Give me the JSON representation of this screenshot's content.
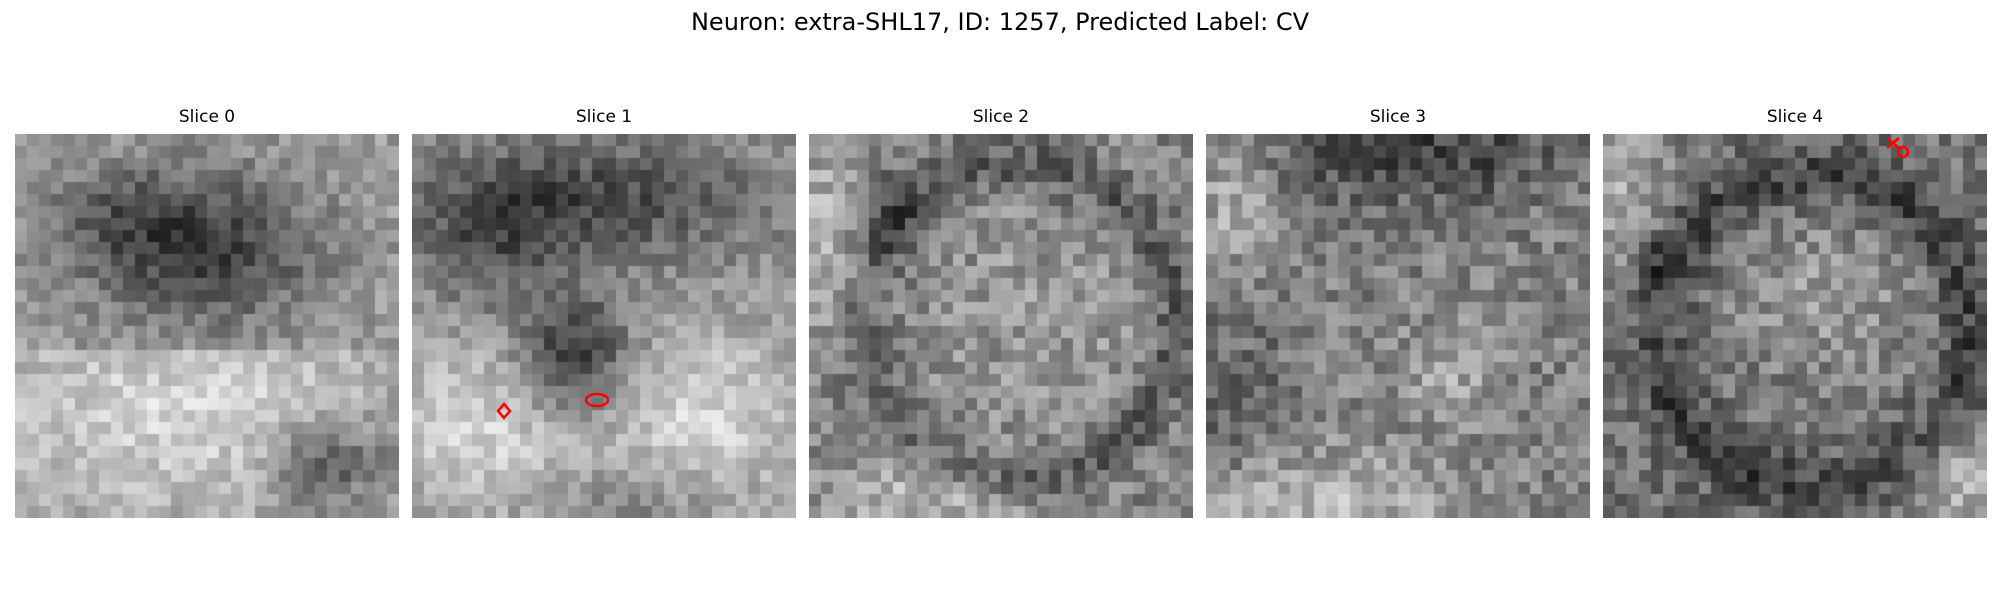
{
  "figure": {
    "title": "Neuron: extra-SHL17, ID: 1257, Predicted Label: CV"
  },
  "annotation_color": "#ff0000",
  "colormap": "gray",
  "slices": [
    {
      "label": "Slice 0",
      "markers": []
    },
    {
      "label": "Slice 1",
      "markers": [
        {
          "shape": "diamond-marker"
        },
        {
          "shape": "ellipse-marker"
        }
      ]
    },
    {
      "label": "Slice 2",
      "markers": []
    },
    {
      "label": "Slice 3",
      "markers": []
    },
    {
      "label": "Slice 4",
      "markers": [
        {
          "shape": "cross-marker"
        },
        {
          "shape": "circle-marker"
        }
      ]
    }
  ]
}
